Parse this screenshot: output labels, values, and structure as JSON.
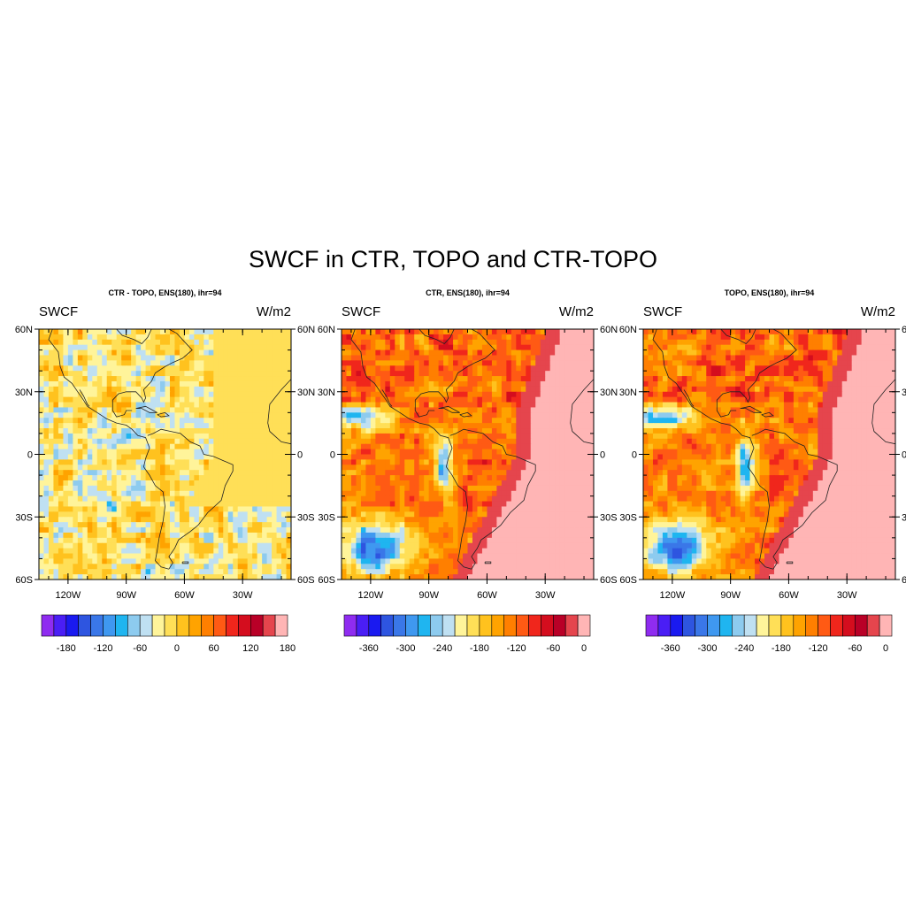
{
  "title": "SWCF in CTR, TOPO and CTR-TOPO",
  "panels": [
    {
      "subtitle": "CTR - TOPO, ENS(180), ihr=94",
      "left_label": "SWCF",
      "right_label": "W/m2",
      "colorbar": {
        "labels": [
          "-180",
          "-120",
          "-60",
          "0",
          "60",
          "120",
          "180"
        ],
        "colors": [
          "#8f2cf0",
          "#4a1ef5",
          "#1a1af0",
          "#2e55e0",
          "#3a77e8",
          "#3f98f0",
          "#1fb5f0",
          "#8dcbef",
          "#bfe0f2",
          "#fff49a",
          "#ffdf57",
          "#ffc21e",
          "#ffa300",
          "#ff7f00",
          "#ff5a14",
          "#f0261c",
          "#d40d1e",
          "#b90027",
          "#e5454d",
          "#ffb5b5"
        ]
      },
      "map_style": "anomaly"
    },
    {
      "subtitle": "CTR, ENS(180), ihr=94",
      "left_label": "SWCF",
      "right_label": "W/m2",
      "colorbar": {
        "labels": [
          "-360",
          "-300",
          "-240",
          "-180",
          "-120",
          "-60",
          "0"
        ],
        "colors": [
          "#8f2cf0",
          "#4a1ef5",
          "#1a1af0",
          "#2e55e0",
          "#3a77e8",
          "#3f98f0",
          "#1fb5f0",
          "#8dcbef",
          "#bfe0f2",
          "#fff49a",
          "#ffdf57",
          "#ffc21e",
          "#ffa300",
          "#ff7f00",
          "#ff5a14",
          "#f0261c",
          "#d40d1e",
          "#b90027",
          "#e5454d",
          "#ffb5b5"
        ]
      },
      "map_style": "absolute"
    },
    {
      "subtitle": "TOPO, ENS(180), ihr=94",
      "left_label": "SWCF",
      "right_label": "W/m2",
      "colorbar": {
        "labels": [
          "-360",
          "-300",
          "-240",
          "-180",
          "-120",
          "-60",
          "0"
        ],
        "colors": [
          "#8f2cf0",
          "#4a1ef5",
          "#1a1af0",
          "#2e55e0",
          "#3a77e8",
          "#3f98f0",
          "#1fb5f0",
          "#8dcbef",
          "#bfe0f2",
          "#fff49a",
          "#ffdf57",
          "#ffc21e",
          "#ffa300",
          "#ff7f00",
          "#ff5a14",
          "#f0261c",
          "#d40d1e",
          "#b90027",
          "#e5454d",
          "#ffb5b5"
        ]
      },
      "map_style": "absolute"
    }
  ],
  "map": {
    "lat_ticks": [
      "60N",
      "30N",
      "0",
      "30S",
      "60S"
    ],
    "lon_ticks": [
      "120W",
      "90W",
      "60W",
      "30W"
    ]
  }
}
